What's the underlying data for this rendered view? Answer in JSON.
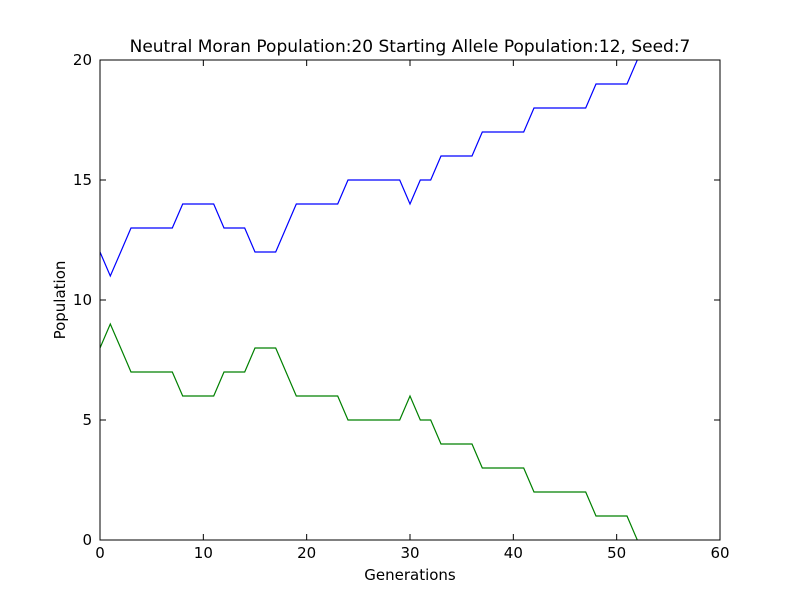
{
  "chart_data": {
    "type": "line",
    "title": "Neutral Moran Population:20 Starting Allele Population:12, Seed:7",
    "xlabel": "Generations",
    "ylabel": "Population",
    "xlim": [
      0,
      60
    ],
    "ylim": [
      0,
      20
    ],
    "xticks": [
      0,
      10,
      20,
      30,
      40,
      50,
      60
    ],
    "yticks": [
      0,
      5,
      10,
      15,
      20
    ],
    "grid": false,
    "legend": "none",
    "series": [
      {
        "color": "#0000ff",
        "x": [
          0,
          1,
          2,
          3,
          4,
          5,
          6,
          7,
          8,
          9,
          10,
          11,
          12,
          13,
          14,
          15,
          16,
          17,
          18,
          19,
          20,
          21,
          22,
          23,
          24,
          25,
          26,
          27,
          28,
          29,
          30,
          31,
          32,
          33,
          34,
          35,
          36,
          37,
          38,
          39,
          40,
          41,
          42,
          43,
          44,
          45,
          46,
          47,
          48,
          49,
          50,
          51,
          52
        ],
        "values": [
          12,
          11,
          12,
          13,
          13,
          13,
          13,
          13,
          14,
          14,
          14,
          14,
          13,
          13,
          13,
          12,
          12,
          12,
          13,
          14,
          14,
          14,
          14,
          14,
          15,
          15,
          15,
          15,
          15,
          15,
          14,
          15,
          15,
          16,
          16,
          16,
          16,
          17,
          17,
          17,
          17,
          17,
          18,
          18,
          18,
          18,
          18,
          18,
          19,
          19,
          19,
          19,
          20
        ]
      },
      {
        "color": "#008000",
        "x": [
          0,
          1,
          2,
          3,
          4,
          5,
          6,
          7,
          8,
          9,
          10,
          11,
          12,
          13,
          14,
          15,
          16,
          17,
          18,
          19,
          20,
          21,
          22,
          23,
          24,
          25,
          26,
          27,
          28,
          29,
          30,
          31,
          32,
          33,
          34,
          35,
          36,
          37,
          38,
          39,
          40,
          41,
          42,
          43,
          44,
          45,
          46,
          47,
          48,
          49,
          50,
          51,
          52
        ],
        "values": [
          8,
          9,
          8,
          7,
          7,
          7,
          7,
          7,
          6,
          6,
          6,
          6,
          7,
          7,
          7,
          8,
          8,
          8,
          7,
          6,
          6,
          6,
          6,
          6,
          5,
          5,
          5,
          5,
          5,
          5,
          6,
          5,
          5,
          4,
          4,
          4,
          4,
          3,
          3,
          3,
          3,
          3,
          2,
          2,
          2,
          2,
          2,
          2,
          1,
          1,
          1,
          1,
          0
        ]
      }
    ]
  }
}
